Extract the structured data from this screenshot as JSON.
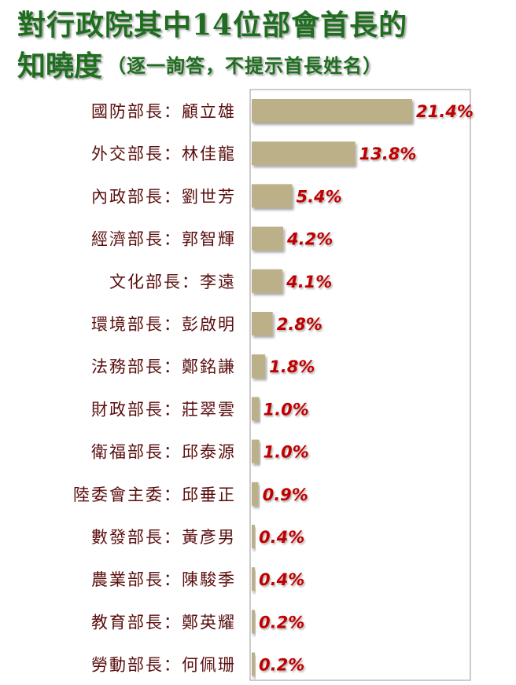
{
  "title": {
    "line1": "對行政院其中14位部會首長的",
    "line2_main": "知曉度",
    "line2_sub": "（逐一詢答，不提示首長姓名）"
  },
  "colors": {
    "bar": "#bcb089",
    "value_label": "#c00000",
    "category_label": "#5a0d0d",
    "title": "#1f6e1f"
  },
  "chart_data": {
    "type": "bar",
    "orientation": "horizontal",
    "title": "對行政院其中14位部會首長的知曉度（逐一詢答，不提示首長姓名）",
    "unit": "%",
    "xlim": [
      0,
      21.4
    ],
    "grid": false,
    "categories": [
      "國防部長：顧立雄",
      "外交部長：林佳龍",
      "內政部長：劉世芳",
      "經濟部長：郭智輝",
      "文化部長：李遠",
      "環境部長：彭啟明",
      "法務部長：鄭銘謙",
      "財政部長：莊翠雲",
      "衛福部長：邱泰源",
      "陸委會主委：邱垂正",
      "數發部長：黃彥男",
      "農業部長：陳駿季",
      "教育部長：鄭英耀",
      "勞動部長：何佩珊"
    ],
    "values": [
      21.4,
      13.8,
      5.4,
      4.2,
      4.1,
      2.8,
      1.8,
      1.0,
      1.0,
      0.9,
      0.4,
      0.4,
      0.2,
      0.2
    ],
    "value_labels": [
      "21.4%",
      "13.8%",
      "5.4%",
      "4.2%",
      "4.1%",
      "2.8%",
      "1.8%",
      "1.0%",
      "1.0%",
      "0.9%",
      "0.4%",
      "0.4%",
      "0.2%",
      "0.2%"
    ]
  }
}
